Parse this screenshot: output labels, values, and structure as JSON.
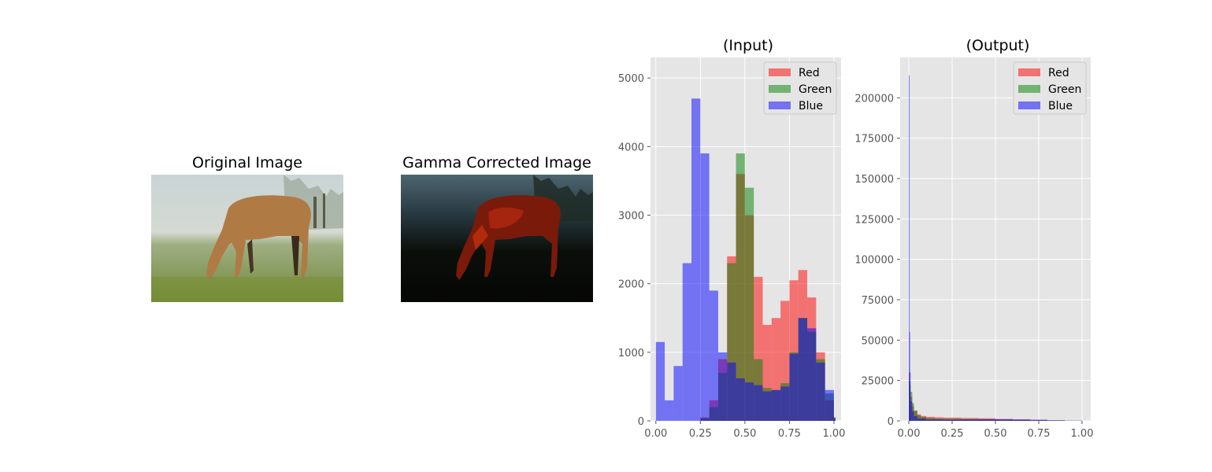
{
  "images": [
    {
      "title": "Original Image",
      "description_icon": "horse-photo-icon"
    },
    {
      "title": "Gamma Corrected Image",
      "description_icon": "horse-photo-dark-icon"
    }
  ],
  "colors": {
    "red": "#ff0000",
    "green": "#008000",
    "blue": "#0000ff",
    "axes_bg": "#e5e5e5",
    "grid": "#ffffff"
  },
  "chart_data": [
    {
      "type": "histogram",
      "title": "(Input)",
      "xlabel": "",
      "ylabel": "",
      "xlim": [
        -0.03,
        1.04
      ],
      "ylim": [
        0,
        5300
      ],
      "xticks": [
        "0.00",
        "0.25",
        "0.50",
        "0.75",
        "1.00"
      ],
      "xtick_values": [
        0,
        0.25,
        0.5,
        0.75,
        1.0
      ],
      "yticks": [
        "0",
        "1000",
        "2000",
        "3000",
        "4000",
        "5000"
      ],
      "ytick_values": [
        0,
        1000,
        2000,
        3000,
        4000,
        5000
      ],
      "grid": true,
      "legend_position": "top-right",
      "series": [
        {
          "name": "Red",
          "color": "#ff0000",
          "x": [
            0.0,
            0.05,
            0.1,
            0.15,
            0.2,
            0.25,
            0.3,
            0.35,
            0.4,
            0.45,
            0.5,
            0.55,
            0.6,
            0.65,
            0.7,
            0.75,
            0.8,
            0.85,
            0.9,
            0.95,
            1.0
          ],
          "values": [
            0,
            0,
            0,
            0,
            0,
            50,
            300,
            900,
            2400,
            3600,
            3000,
            2100,
            1400,
            1500,
            1750,
            2050,
            2200,
            1800,
            1000,
            300,
            50
          ]
        },
        {
          "name": "Green",
          "color": "#008000",
          "x": [
            0.0,
            0.05,
            0.1,
            0.15,
            0.2,
            0.25,
            0.3,
            0.35,
            0.4,
            0.45,
            0.5,
            0.55,
            0.6,
            0.65,
            0.7,
            0.75,
            0.8,
            0.85,
            0.9,
            0.95,
            1.0
          ],
          "values": [
            0,
            0,
            0,
            0,
            0,
            40,
            200,
            700,
            2300,
            3900,
            3400,
            900,
            480,
            450,
            550,
            1000,
            1500,
            1300,
            900,
            400,
            50
          ]
        },
        {
          "name": "Blue",
          "color": "#0000ff",
          "x": [
            0.0,
            0.05,
            0.1,
            0.15,
            0.2,
            0.25,
            0.3,
            0.35,
            0.4,
            0.45,
            0.5,
            0.55,
            0.6,
            0.65,
            0.7,
            0.75,
            0.8,
            0.85,
            0.9,
            0.95,
            1.0
          ],
          "values": [
            1150,
            300,
            800,
            2300,
            4700,
            3900,
            1900,
            1000,
            850,
            620,
            560,
            520,
            430,
            450,
            500,
            980,
            1500,
            1350,
            850,
            450,
            40
          ]
        }
      ]
    },
    {
      "type": "histogram",
      "title": "(Output)",
      "xlabel": "",
      "ylabel": "",
      "xlim": [
        -0.05,
        1.05
      ],
      "ylim": [
        0,
        225000
      ],
      "xticks": [
        "0.00",
        "0.25",
        "0.50",
        "0.75",
        "1.00"
      ],
      "xtick_values": [
        0,
        0.25,
        0.5,
        0.75,
        1.0
      ],
      "yticks": [
        "0",
        "25000",
        "50000",
        "75000",
        "100000",
        "125000",
        "150000",
        "175000",
        "200000"
      ],
      "ytick_values": [
        0,
        25000,
        50000,
        75000,
        100000,
        125000,
        150000,
        175000,
        200000
      ],
      "grid": true,
      "legend_position": "top-right",
      "series": [
        {
          "name": "Red",
          "color": "#ff0000",
          "x": [
            0.0,
            0.005,
            0.01,
            0.02,
            0.03,
            0.05,
            0.07,
            0.1,
            0.15,
            0.2,
            0.3,
            0.4,
            0.5,
            0.6,
            0.7,
            0.8,
            0.9,
            1.0
          ],
          "values": [
            30000,
            22000,
            15000,
            9000,
            6000,
            4000,
            3000,
            2500,
            2200,
            2000,
            1800,
            1600,
            1200,
            900,
            600,
            300,
            100,
            0
          ]
        },
        {
          "name": "Green",
          "color": "#008000",
          "x": [
            0.0,
            0.005,
            0.01,
            0.02,
            0.03,
            0.05,
            0.07,
            0.1,
            0.15,
            0.2,
            0.3,
            0.4,
            0.5,
            0.6,
            0.7,
            0.8,
            0.9,
            1.0
          ],
          "values": [
            25000,
            24000,
            18000,
            11000,
            6500,
            3500,
            2500,
            1800,
            1500,
            1300,
            1100,
            900,
            700,
            500,
            300,
            150,
            50,
            0
          ]
        },
        {
          "name": "Blue",
          "color": "#0000ff",
          "x": [
            0.0,
            0.003,
            0.006,
            0.01,
            0.02,
            0.03,
            0.05,
            0.1,
            0.2,
            0.3,
            0.4,
            0.5,
            0.6,
            0.7,
            0.8,
            0.9,
            1.0
          ],
          "values": [
            214000,
            55000,
            30000,
            12000,
            6000,
            3000,
            1500,
            900,
            800,
            900,
            1000,
            1000,
            900,
            700,
            400,
            150,
            0
          ]
        }
      ]
    }
  ]
}
